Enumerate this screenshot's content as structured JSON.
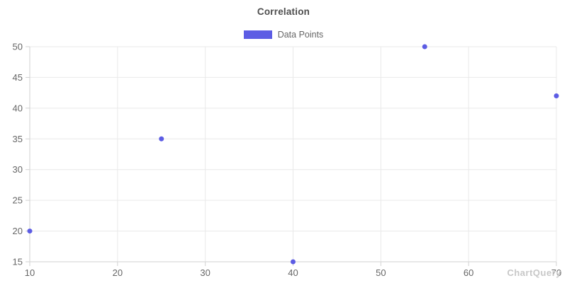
{
  "chart_data": {
    "type": "scatter",
    "title": "Correlation",
    "legend": [
      {
        "label": "Data Points",
        "color": "#5c5ce4"
      }
    ],
    "points": [
      {
        "x": 10,
        "y": 20
      },
      {
        "x": 25,
        "y": 35
      },
      {
        "x": 40,
        "y": 15
      },
      {
        "x": 55,
        "y": 50
      },
      {
        "x": 70,
        "y": 42
      }
    ],
    "xlim": [
      10,
      70
    ],
    "ylim": [
      15,
      50
    ],
    "x_ticks": [
      10,
      20,
      30,
      40,
      50,
      60,
      70
    ],
    "y_ticks": [
      15,
      20,
      25,
      30,
      35,
      40,
      45,
      50
    ],
    "grid": true,
    "legend_position": "top",
    "xlabel": "",
    "ylabel": "",
    "point_radius": 3.5,
    "colors": {
      "point": "#5c5ce4",
      "grid": "#e9e9e9",
      "axis": "#d2d2d2",
      "tick_text": "#666666",
      "title_text": "#4e4e4e"
    }
  },
  "watermark": {
    "text": "ChartQuery"
  }
}
